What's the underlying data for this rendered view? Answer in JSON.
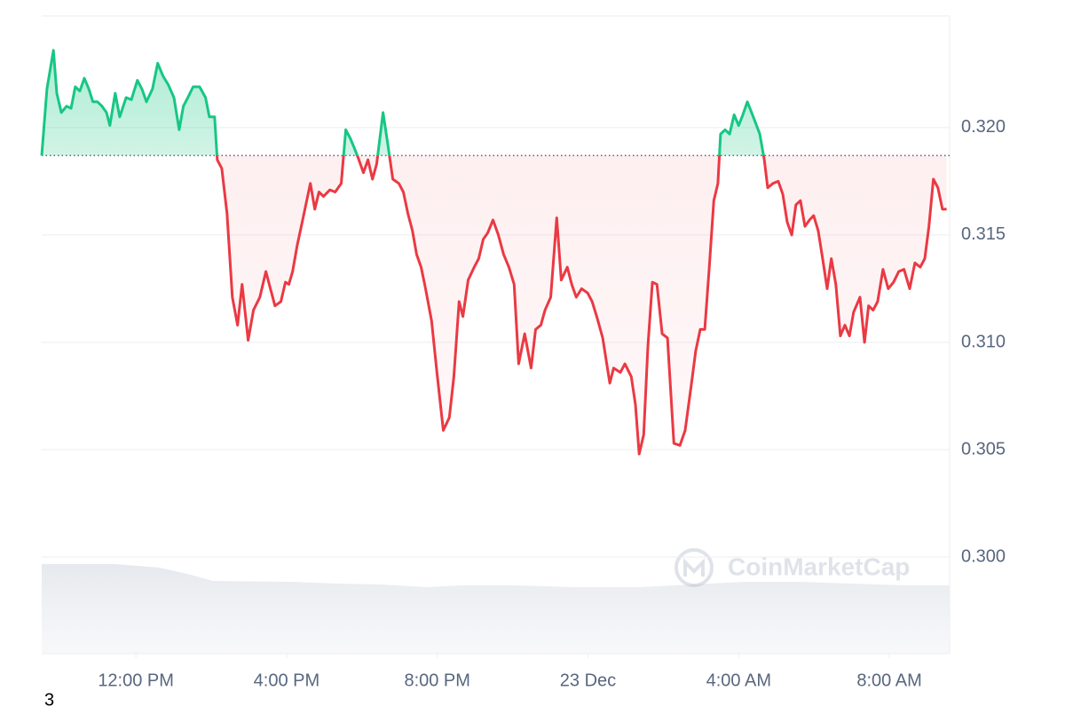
{
  "chart_data": {
    "type": "line",
    "up_color": "#16c784",
    "down_color": "#ea3943",
    "baseline": 0.3187,
    "grid": true,
    "watermark": "CoinMarketCap",
    "corner_text": "3",
    "xlim": [
      9.5,
      33.6
    ],
    "xticks": [
      {
        "value": 12,
        "label": "12:00 PM"
      },
      {
        "value": 16,
        "label": "4:00 PM"
      },
      {
        "value": 20,
        "label": "8:00 PM"
      },
      {
        "value": 24,
        "label": "23 Dec"
      },
      {
        "value": 28,
        "label": "4:00 AM"
      },
      {
        "value": 32,
        "label": "8:00 AM"
      }
    ],
    "ylim": [
      0.2955,
      0.3252
    ],
    "yticks": [
      {
        "value": 0.3,
        "label": "0.300"
      },
      {
        "value": 0.305,
        "label": "0.305"
      },
      {
        "value": 0.31,
        "label": "0.310"
      },
      {
        "value": 0.315,
        "label": "0.315"
      },
      {
        "value": 0.32,
        "label": "0.320"
      }
    ],
    "x": [
      9.5,
      9.64,
      9.81,
      9.9,
      10.02,
      10.16,
      10.28,
      10.39,
      10.51,
      10.63,
      10.75,
      10.86,
      10.98,
      11.1,
      11.22,
      11.31,
      11.45,
      11.57,
      11.74,
      11.88,
      12.04,
      12.16,
      12.28,
      12.44,
      12.58,
      12.72,
      12.86,
      13.01,
      13.15,
      13.26,
      13.38,
      13.52,
      13.69,
      13.85,
      13.95,
      14.09,
      14.16,
      14.28,
      14.42,
      14.56,
      14.7,
      14.82,
      14.98,
      15.12,
      15.29,
      15.45,
      15.57,
      15.69,
      15.85,
      15.97,
      16.06,
      16.16,
      16.28,
      16.39,
      16.51,
      16.63,
      16.75,
      16.86,
      16.98,
      17.15,
      17.29,
      17.45,
      17.57,
      17.69,
      17.81,
      17.92,
      18.04,
      18.16,
      18.28,
      18.39,
      18.56,
      18.68,
      18.82,
      18.98,
      19.1,
      19.22,
      19.34,
      19.45,
      19.57,
      19.69,
      19.85,
      19.99,
      20.16,
      20.32,
      20.44,
      20.58,
      20.68,
      20.82,
      20.98,
      21.1,
      21.22,
      21.34,
      21.48,
      21.62,
      21.76,
      21.9,
      22.04,
      22.16,
      22.32,
      22.49,
      22.61,
      22.75,
      22.86,
      23.01,
      23.17,
      23.29,
      23.45,
      23.57,
      23.69,
      23.83,
      23.99,
      24.11,
      24.25,
      24.39,
      24.58,
      24.68,
      24.86,
      24.98,
      25.15,
      25.26,
      25.36,
      25.48,
      25.59,
      25.71,
      25.83,
      25.97,
      26.11,
      26.28,
      26.44,
      26.58,
      26.75,
      26.86,
      26.98,
      27.1,
      27.22,
      27.34,
      27.45,
      27.52,
      27.64,
      27.76,
      27.88,
      28.0,
      28.11,
      28.23,
      28.39,
      28.56,
      28.68,
      28.77,
      28.91,
      29.05,
      29.17,
      29.29,
      29.41,
      29.52,
      29.64,
      29.76,
      29.88,
      29.99,
      30.11,
      30.23,
      30.35,
      30.46,
      30.58,
      30.7,
      30.82,
      30.94,
      31.05,
      31.22,
      31.34,
      31.45,
      31.57,
      31.69,
      31.83,
      31.97,
      32.11,
      32.25,
      32.39,
      32.54,
      32.68,
      32.82,
      32.94,
      33.05,
      33.17,
      33.29,
      33.41,
      33.52
    ],
    "values": [
      0.3187,
      0.3218,
      0.3236,
      0.3216,
      0.3207,
      0.321,
      0.3209,
      0.3219,
      0.3217,
      0.3223,
      0.3218,
      0.3212,
      0.3212,
      0.321,
      0.3207,
      0.3201,
      0.3216,
      0.3205,
      0.3214,
      0.3213,
      0.3222,
      0.3218,
      0.3212,
      0.3218,
      0.323,
      0.3224,
      0.322,
      0.3214,
      0.3199,
      0.321,
      0.3214,
      0.3219,
      0.3219,
      0.3214,
      0.3205,
      0.3205,
      0.3185,
      0.3181,
      0.316,
      0.3121,
      0.3108,
      0.3127,
      0.3101,
      0.3115,
      0.3121,
      0.3133,
      0.3125,
      0.3117,
      0.3119,
      0.3128,
      0.3127,
      0.3133,
      0.3145,
      0.3154,
      0.3164,
      0.3174,
      0.3162,
      0.317,
      0.3168,
      0.3171,
      0.317,
      0.3174,
      0.3199,
      0.3195,
      0.319,
      0.3185,
      0.3179,
      0.3185,
      0.3176,
      0.3183,
      0.3207,
      0.3193,
      0.3176,
      0.3174,
      0.317,
      0.316,
      0.3152,
      0.3141,
      0.3135,
      0.3125,
      0.311,
      0.3086,
      0.3059,
      0.3065,
      0.3084,
      0.3119,
      0.3112,
      0.3129,
      0.3135,
      0.3139,
      0.3148,
      0.3151,
      0.3157,
      0.315,
      0.3141,
      0.3135,
      0.3127,
      0.309,
      0.3104,
      0.3088,
      0.3106,
      0.3108,
      0.3115,
      0.3121,
      0.3158,
      0.3129,
      0.3135,
      0.3127,
      0.3121,
      0.3125,
      0.3123,
      0.3119,
      0.3111,
      0.3102,
      0.3081,
      0.3088,
      0.3086,
      0.309,
      0.3084,
      0.3071,
      0.3048,
      0.3057,
      0.3098,
      0.3128,
      0.3127,
      0.3104,
      0.3102,
      0.3053,
      0.3052,
      0.3059,
      0.3081,
      0.3096,
      0.3106,
      0.3106,
      0.3135,
      0.3166,
      0.3174,
      0.3197,
      0.3199,
      0.3197,
      0.3206,
      0.3201,
      0.3206,
      0.3212,
      0.3205,
      0.3197,
      0.3185,
      0.3172,
      0.3174,
      0.3175,
      0.3169,
      0.3156,
      0.315,
      0.3164,
      0.3166,
      0.3154,
      0.3157,
      0.3159,
      0.3152,
      0.3139,
      0.3125,
      0.3139,
      0.3127,
      0.3103,
      0.3108,
      0.3103,
      0.3114,
      0.3121,
      0.31,
      0.3117,
      0.3115,
      0.3119,
      0.3134,
      0.3125,
      0.3128,
      0.3133,
      0.3134,
      0.3125,
      0.3137,
      0.3135,
      0.3139,
      0.3154,
      0.3176,
      0.3172,
      0.3162,
      0.3162
    ]
  }
}
